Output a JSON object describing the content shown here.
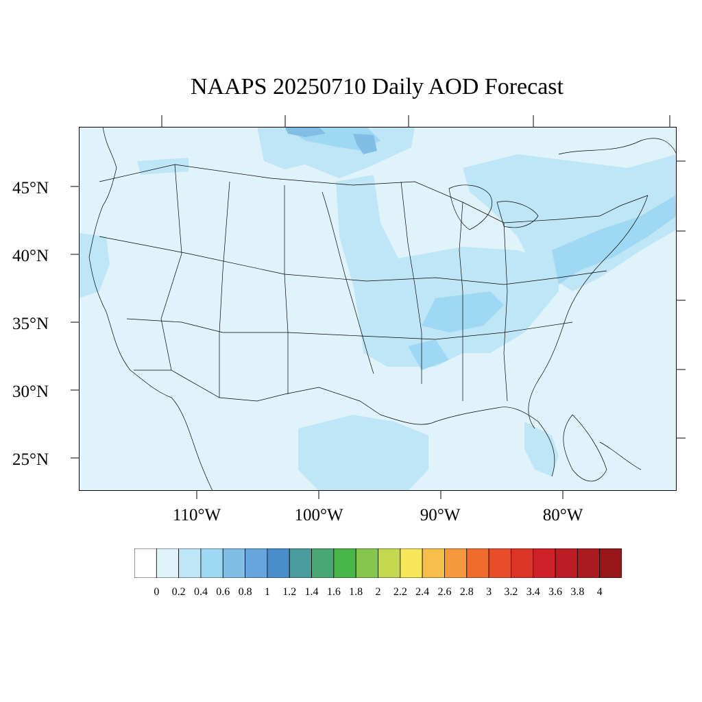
{
  "title": "NAAPS 20250710 Daily AOD Forecast",
  "axes": {
    "lat_labels": [
      "45°N",
      "40°N",
      "35°N",
      "30°N",
      "25°N"
    ],
    "lon_labels": [
      "110°W",
      "100°W",
      "90°W",
      "80°W"
    ]
  },
  "colorbar": {
    "labels": [
      "0",
      "0.2",
      "0.4",
      "0.6",
      "0.8",
      "1",
      "1.2",
      "1.4",
      "1.6",
      "1.8",
      "2",
      "2.2",
      "2.4",
      "2.6",
      "2.8",
      "3",
      "3.2",
      "3.4",
      "3.6",
      "3.8",
      "4"
    ],
    "colors": [
      "#ffffff",
      "#e0f3fb",
      "#bfe6f7",
      "#9fd8f2",
      "#82bde6",
      "#66a6dc",
      "#4a8dcb",
      "#4a9b9e",
      "#48a873",
      "#49b64a",
      "#86c54e",
      "#c3d84f",
      "#f7e65a",
      "#f8be4a",
      "#f6983c",
      "#f06c2c",
      "#e84e2a",
      "#dc3526",
      "#d0202a",
      "#bc1c24",
      "#ab1a20",
      "#961619"
    ]
  },
  "colors": {
    "background_aod": "#e0f3fb",
    "moderate_aod": "#bfe6f7",
    "higher_aod": "#9fd8f2",
    "peak_aod": "#82bde6"
  }
}
